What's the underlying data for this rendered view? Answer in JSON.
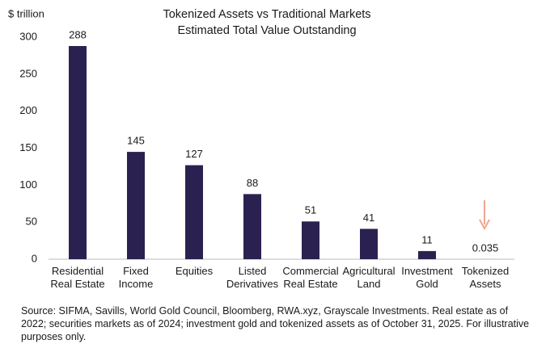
{
  "chart_data": {
    "type": "bar",
    "title": "Tokenized Assets vs Traditional Markets",
    "subtitle": "Estimated Total Value Outstanding",
    "y_label": "$ trillion",
    "categories": [
      "Residential\nReal Estate",
      "Fixed\nIncome",
      "Equities",
      "Listed\nDerivatives",
      "Commercial\nReal Estate",
      "Agricultural\nLand",
      "Investment\nGold",
      "Tokenized\nAssets"
    ],
    "values": [
      288,
      145,
      127,
      88,
      51,
      41,
      11,
      0.035
    ],
    "color": "#2b2150",
    "ylim": [
      0,
      300
    ],
    "yticks": [
      0,
      50,
      100,
      150,
      200,
      250,
      300
    ],
    "grid": false,
    "note": "Source: SIFMA, Savills, World Gold Council, Bloomberg, RWA.xyz, Grayscale Investments. Real estate as of 2022; securities markets as of 2024; investment gold and tokenized assets as of October 31, 2025. For illustrative purposes only."
  }
}
